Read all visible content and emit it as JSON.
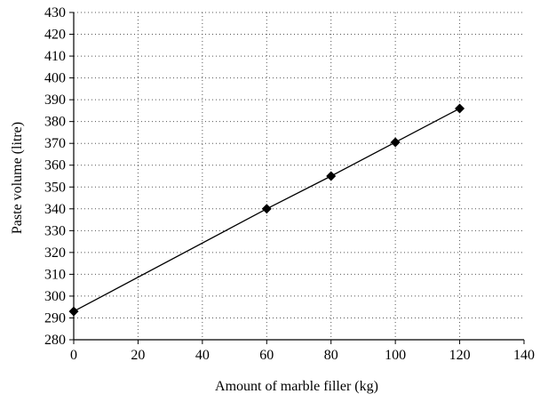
{
  "chart_data": {
    "type": "line",
    "title": "",
    "xlabel": "Amount of marble filler (kg)",
    "ylabel": "Paste volume (litre)",
    "xlim": [
      0,
      140
    ],
    "ylim": [
      280,
      430
    ],
    "x_ticks": [
      0,
      20,
      40,
      60,
      80,
      100,
      120,
      140
    ],
    "y_ticks": [
      280,
      290,
      300,
      310,
      320,
      330,
      340,
      350,
      360,
      370,
      380,
      390,
      400,
      410,
      420,
      430
    ],
    "grid": "dotted",
    "legend": "none",
    "marker": "diamond",
    "series": [
      {
        "x": [
          0,
          60,
          80,
          100,
          120
        ],
        "y": [
          293,
          340,
          355,
          370.5,
          386
        ]
      }
    ],
    "colors": {
      "line": "#000000",
      "grid": "#555555",
      "axis": "#000000"
    }
  }
}
